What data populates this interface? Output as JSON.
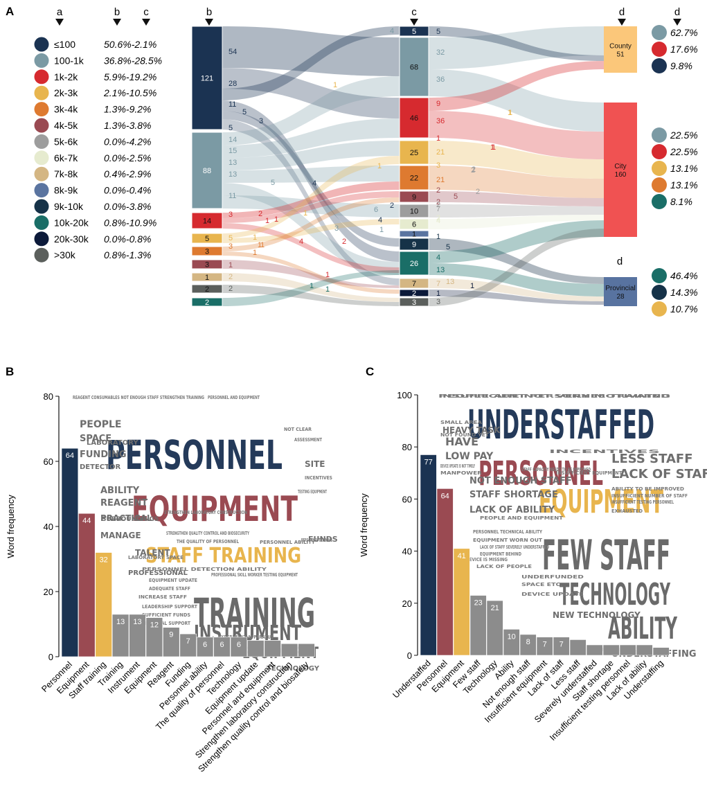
{
  "panel_labels": {
    "a": "A",
    "b": "B",
    "c": "C"
  },
  "panelA": {
    "column_headers": {
      "legend_a": "a",
      "legend_b": "b",
      "legend_c": "c",
      "node_b": "b",
      "node_c": "c",
      "node_d": "d",
      "right_d": "d",
      "prov_d": "d"
    },
    "legend": [
      {
        "name": "≤100",
        "range": "50.6%-2.1%",
        "color": "#1b3352"
      },
      {
        "name": "100-1k",
        "range": "36.8%-28.5%",
        "color": "#7b9aa4"
      },
      {
        "name": "1k-2k",
        "range": "5.9%-19.2%",
        "color": "#d62a2f"
      },
      {
        "name": "2k-3k",
        "range": "2.1%-10.5%",
        "color": "#e8b54e"
      },
      {
        "name": "3k-4k",
        "range": "1.3%-9.2%",
        "color": "#de7a30"
      },
      {
        "name": "4k-5k",
        "range": "1.3%-3.8%",
        "color": "#9a4a52"
      },
      {
        "name": "5k-6k",
        "range": "0.0%-4.2%",
        "color": "#9d9d9d"
      },
      {
        "name": "6k-7k",
        "range": "0.0%-2.5%",
        "color": "#e6ebcf"
      },
      {
        "name": "7k-8k",
        "range": "0.4%-2.9%",
        "color": "#d4b683"
      },
      {
        "name": "8k-9k",
        "range": "0.0%-0.4%",
        "color": "#5a74a0"
      },
      {
        "name": "9k-10k",
        "range": "0.0%-3.8%",
        "color": "#163248"
      },
      {
        "name": "10k-20k",
        "range": "0.8%-10.9%",
        "color": "#1a6e67"
      },
      {
        "name": "20k-30k",
        "range": "0.0%-0.8%",
        "color": "#0c1a3a"
      },
      {
        "name": ">30k",
        "range": "0.8%-1.3%",
        "color": "#5b5f5c"
      }
    ],
    "left_nodes": [
      "121",
      "88",
      "14",
      "5",
      "3",
      "3",
      "1",
      "2",
      "2"
    ],
    "mid_nodes": [
      "5",
      "68",
      "46",
      "25",
      "22",
      "9",
      "10",
      "6",
      "1",
      "9",
      "26",
      "7",
      "2",
      "3"
    ],
    "right_nodes": [
      {
        "name": "County",
        "value": "51",
        "color": "#fbc77a"
      },
      {
        "name": "City",
        "value": "160",
        "color": "#f05252"
      },
      {
        "name": "Provincial",
        "value": "28",
        "color": "#5873a0"
      }
    ],
    "flow_labels_left": [
      "54",
      "28",
      "11",
      "5",
      "14",
      "15",
      "13",
      "13",
      "11",
      "3",
      "5",
      "3",
      "1",
      "2",
      "2"
    ],
    "flow_labels_inner": [
      "5",
      "3",
      "4",
      "5",
      "1",
      "2",
      "1",
      "1",
      "1",
      "4",
      "1",
      "1",
      "1",
      "1",
      "1",
      "1",
      "1",
      "3",
      "6",
      "2",
      "4",
      "1",
      "2",
      "1",
      "1",
      "1",
      "1",
      "2"
    ],
    "flow_labels_mid_left": [
      "4"
    ],
    "flow_labels_mid_right": [
      "5",
      "32",
      "36",
      "9",
      "36",
      "1",
      "21",
      "3",
      "21",
      "2",
      "2",
      "2",
      "7",
      "2",
      "4",
      "1",
      "5",
      "4",
      "13",
      "13",
      "7",
      "1",
      "3"
    ],
    "flow_labels_right_inner": [
      "1",
      "1",
      "2",
      "5",
      "2",
      "1"
    ],
    "right_pcts": {
      "county": [
        "62.7%",
        "17.6%",
        "9.8%"
      ],
      "city": [
        "22.5%",
        "22.5%",
        "13.1%",
        "13.1%",
        "8.1%"
      ],
      "provincial": [
        "46.4%",
        "14.3%",
        "10.7%"
      ]
    },
    "right_pct_colors": {
      "county": [
        "#7b9aa4",
        "#d62a2f",
        "#1b3352"
      ],
      "city": [
        "#7b9aa4",
        "#d62a2f",
        "#e8b54e",
        "#de7a30",
        "#1a6e67"
      ],
      "provincial": [
        "#1a6e67",
        "#163248",
        "#e8b54e"
      ]
    }
  },
  "chart_data": [
    {
      "type": "bar",
      "title": "",
      "xlabel": "",
      "ylabel": "Word frequency",
      "ylim": [
        0,
        80
      ],
      "yticks": [
        "0",
        "20",
        "40",
        "60",
        "80"
      ],
      "categories": [
        "Personnel",
        "Equipment",
        "Staff training",
        "Training",
        "Instrument",
        "Equipment",
        "Reagent",
        "Funding",
        "Personnel ability",
        "The quality of personnel",
        "Technology",
        "Equipment update",
        "Personnel and equipment",
        "Strengthen laboratory construction",
        "Strengthen quality control and biosafety"
      ],
      "values": [
        64,
        44,
        32,
        13,
        13,
        12,
        9,
        7,
        6,
        6,
        6,
        5,
        5,
        4,
        4
      ],
      "value_labels": [
        "64",
        "44",
        "32",
        "13",
        "13",
        "12",
        "9",
        "7",
        "6",
        "6",
        "6",
        "",
        "",
        "",
        ""
      ],
      "colors": [
        "#1b3352",
        "#9a4a52",
        "#e8b54e",
        "#8c8c8c",
        "#8c8c8c",
        "#8c8c8c",
        "#8c8c8c",
        "#8c8c8c",
        "#8c8c8c",
        "#8c8c8c",
        "#8c8c8c",
        "#8c8c8c",
        "#8c8c8c",
        "#8c8c8c",
        "#8c8c8c"
      ],
      "word_cloud": {
        "big": [
          "PERSONNEL",
          "EQUIPMENT",
          "STAFF TRAINING",
          "TRAINING",
          "INSTRUMENT",
          "EQUIPMENT"
        ],
        "medium": [
          "PEOPLE",
          "SPACE",
          "FUNDING",
          "ABILITY",
          "REAGENT",
          "PRACTICAL",
          "MANAGE",
          "TALENT",
          "SITE",
          "FUNDS",
          "TECHNOLOGY",
          "PROFESSIONAL",
          "DETECTOR",
          "SURROUNDINGS",
          "LABORATORY"
        ],
        "small": [
          "REAGENT CONSUMABLES NOT ENOUGH STAFF STRENGTHEN TRAINING",
          "PERSONNEL AND EQUIPMENT",
          "STRENGTHEN QUALITY CONTROL AND BIOSECURITY",
          "STRENGTHEN LABORATORY CONSTRUCTION",
          "THE QUALITY OF PERSONNEL",
          "PERSONNEL ABILITY",
          "LABORATORY SPACE",
          "EQUIPMENT UPDATE",
          "ADEQUATE STAFF",
          "INCREASE STAFF",
          "NOT CLEAR",
          "ASSESSMENT",
          "TESTING EQUIPMENT",
          "INCENTIVES",
          "PERSONNEL DETECTION ABILITY",
          "PROFESSIONAL SKILL WORKER TESTING EQUIPMENT",
          "LEADERSHIP SUPPORT",
          "SUFFICIENT FUNDS",
          "FINANCIAL SUPPORT",
          "EXPERIMENT APPARATUS",
          "PERSONNEL TRAINING"
        ]
      }
    },
    {
      "type": "bar",
      "title": "",
      "xlabel": "",
      "ylabel": "Word frequency",
      "ylim": [
        0,
        100
      ],
      "yticks": [
        "0",
        "20",
        "40",
        "60",
        "80",
        "100"
      ],
      "categories": [
        "Understaffed",
        "Personnel",
        "Equipment",
        "Few staff",
        "Technology",
        "Ability",
        "Not enough staff",
        "Insufficient equipment",
        "Lack of staff",
        "Less staff",
        "Severely understaffed",
        "Staff shortage",
        "Insufficient testing personnel",
        "Lack of ability",
        "Understaffing"
      ],
      "values": [
        77,
        64,
        41,
        23,
        21,
        10,
        8,
        7,
        7,
        6,
        4,
        4,
        4,
        4,
        3
      ],
      "value_labels": [
        "77",
        "64",
        "41",
        "23",
        "21",
        "10",
        "8",
        "7",
        "7",
        "",
        "",
        "",
        "",
        "",
        ""
      ],
      "colors": [
        "#1b3352",
        "#9a4a52",
        "#e8b54e",
        "#8c8c8c",
        "#8c8c8c",
        "#8c8c8c",
        "#8c8c8c",
        "#8c8c8c",
        "#8c8c8c",
        "#8c8c8c",
        "#8c8c8c",
        "#8c8c8c",
        "#8c8c8c",
        "#8c8c8c",
        "#8c8c8c"
      ],
      "word_cloud": {
        "big": [
          "UNDERSTAFFED",
          "PERSONNEL",
          "EQUIPMENT",
          "FEW STAFF",
          "TECHNOLOGY",
          "ABILITY"
        ],
        "medium": [
          "HAVE",
          "LOW PAY",
          "LESS STAFF",
          "LACK OF STAFF",
          "NOT ENOUGH STAFF",
          "STAFF SHORTAGE",
          "LACK OF ABILITY",
          "UNDERSTAFFING",
          "HEAVY TASK",
          "NEW TECHNOLOGY"
        ],
        "small": [
          "INSUFFICIENT PERSONNEL TRAINING",
          "PEOPLE ARE NOT VERY MOTIVATED",
          "SMALL AREA",
          "DEVICE UPDATE IS NOT TIMELY",
          "MANPOWER",
          "NOT FOUND YET",
          "INCENTIVES",
          "ABILITY TO BE IMPROVED",
          "INSUFFICIENT TESTING PERSONNEL",
          "STAFF CAPACITY NEEDS TO BE IMPROVED",
          "INSUFFICIENT NUMBER OF STAFF",
          "PEOPLE AND EQUIPMENT",
          "PERSONNEL TECHNICAL ABILITY",
          "EQUIPMENT WORN OUT",
          "LACK OF STAFF SEVERELY UNDERSTAFFED",
          "EQUIPMENT BEHIND",
          "DEVICE IS MISSING",
          "LACK OF PEOPLE",
          "UNDERFUNDED",
          "SPACE ETC.",
          "DEVICE UPDATE",
          "LIMITED STAFF",
          "INSUFFICIENT EQUIPMENT",
          "EXHAUSTED"
        ]
      }
    }
  ]
}
